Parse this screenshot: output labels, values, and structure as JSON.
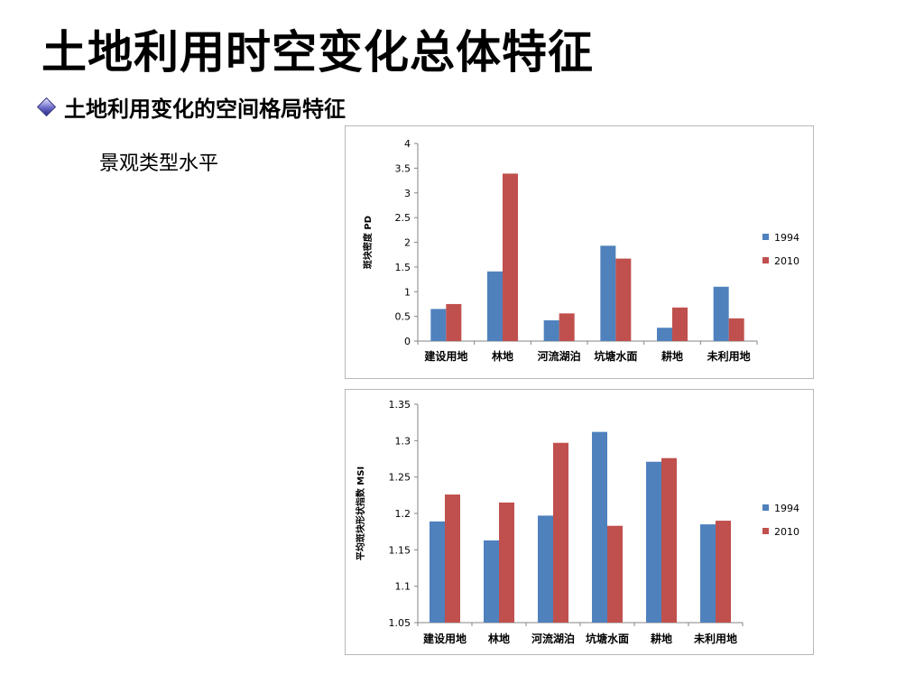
{
  "slide": {
    "title": "土地利用时空变化总体特征",
    "bullet": "土地利用变化的空间格局特征",
    "subtitle": "景观类型水平"
  },
  "colors": {
    "series1": "#4f81bd",
    "series2": "#c0504d",
    "axis": "#868686",
    "frame": "#b8b8b8"
  },
  "chart_data": [
    {
      "type": "bar",
      "ylabel": "斑块密度 PD",
      "categories": [
        "建设用地",
        "林地",
        "河流湖泊",
        "坑塘水面",
        "耕地",
        "未利用地"
      ],
      "ylim": [
        0,
        4
      ],
      "yticks": [
        "0",
        "0.5",
        "1",
        "1.5",
        "2",
        "2.5",
        "3",
        "3.5",
        "4"
      ],
      "legend": "right",
      "series": [
        {
          "name": "1994",
          "values": [
            0.65,
            1.41,
            0.42,
            1.93,
            0.27,
            1.1
          ]
        },
        {
          "name": "2010",
          "values": [
            0.75,
            3.39,
            0.56,
            1.67,
            0.68,
            0.46
          ]
        }
      ]
    },
    {
      "type": "bar",
      "ylabel": "平均斑块形状指数 MSI",
      "categories": [
        "建设用地",
        "林地",
        "河流湖泊",
        "坑塘水面",
        "耕地",
        "未利用地"
      ],
      "ylim": [
        1.05,
        1.35
      ],
      "yticks": [
        "1.05",
        "1.1",
        "1.15",
        "1.2",
        "1.25",
        "1.3",
        "1.35"
      ],
      "legend": "right",
      "series": [
        {
          "name": "1994",
          "values": [
            1.189,
            1.163,
            1.197,
            1.312,
            1.271,
            1.185
          ]
        },
        {
          "name": "2010",
          "values": [
            1.226,
            1.215,
            1.297,
            1.183,
            1.276,
            1.19
          ]
        }
      ]
    }
  ]
}
